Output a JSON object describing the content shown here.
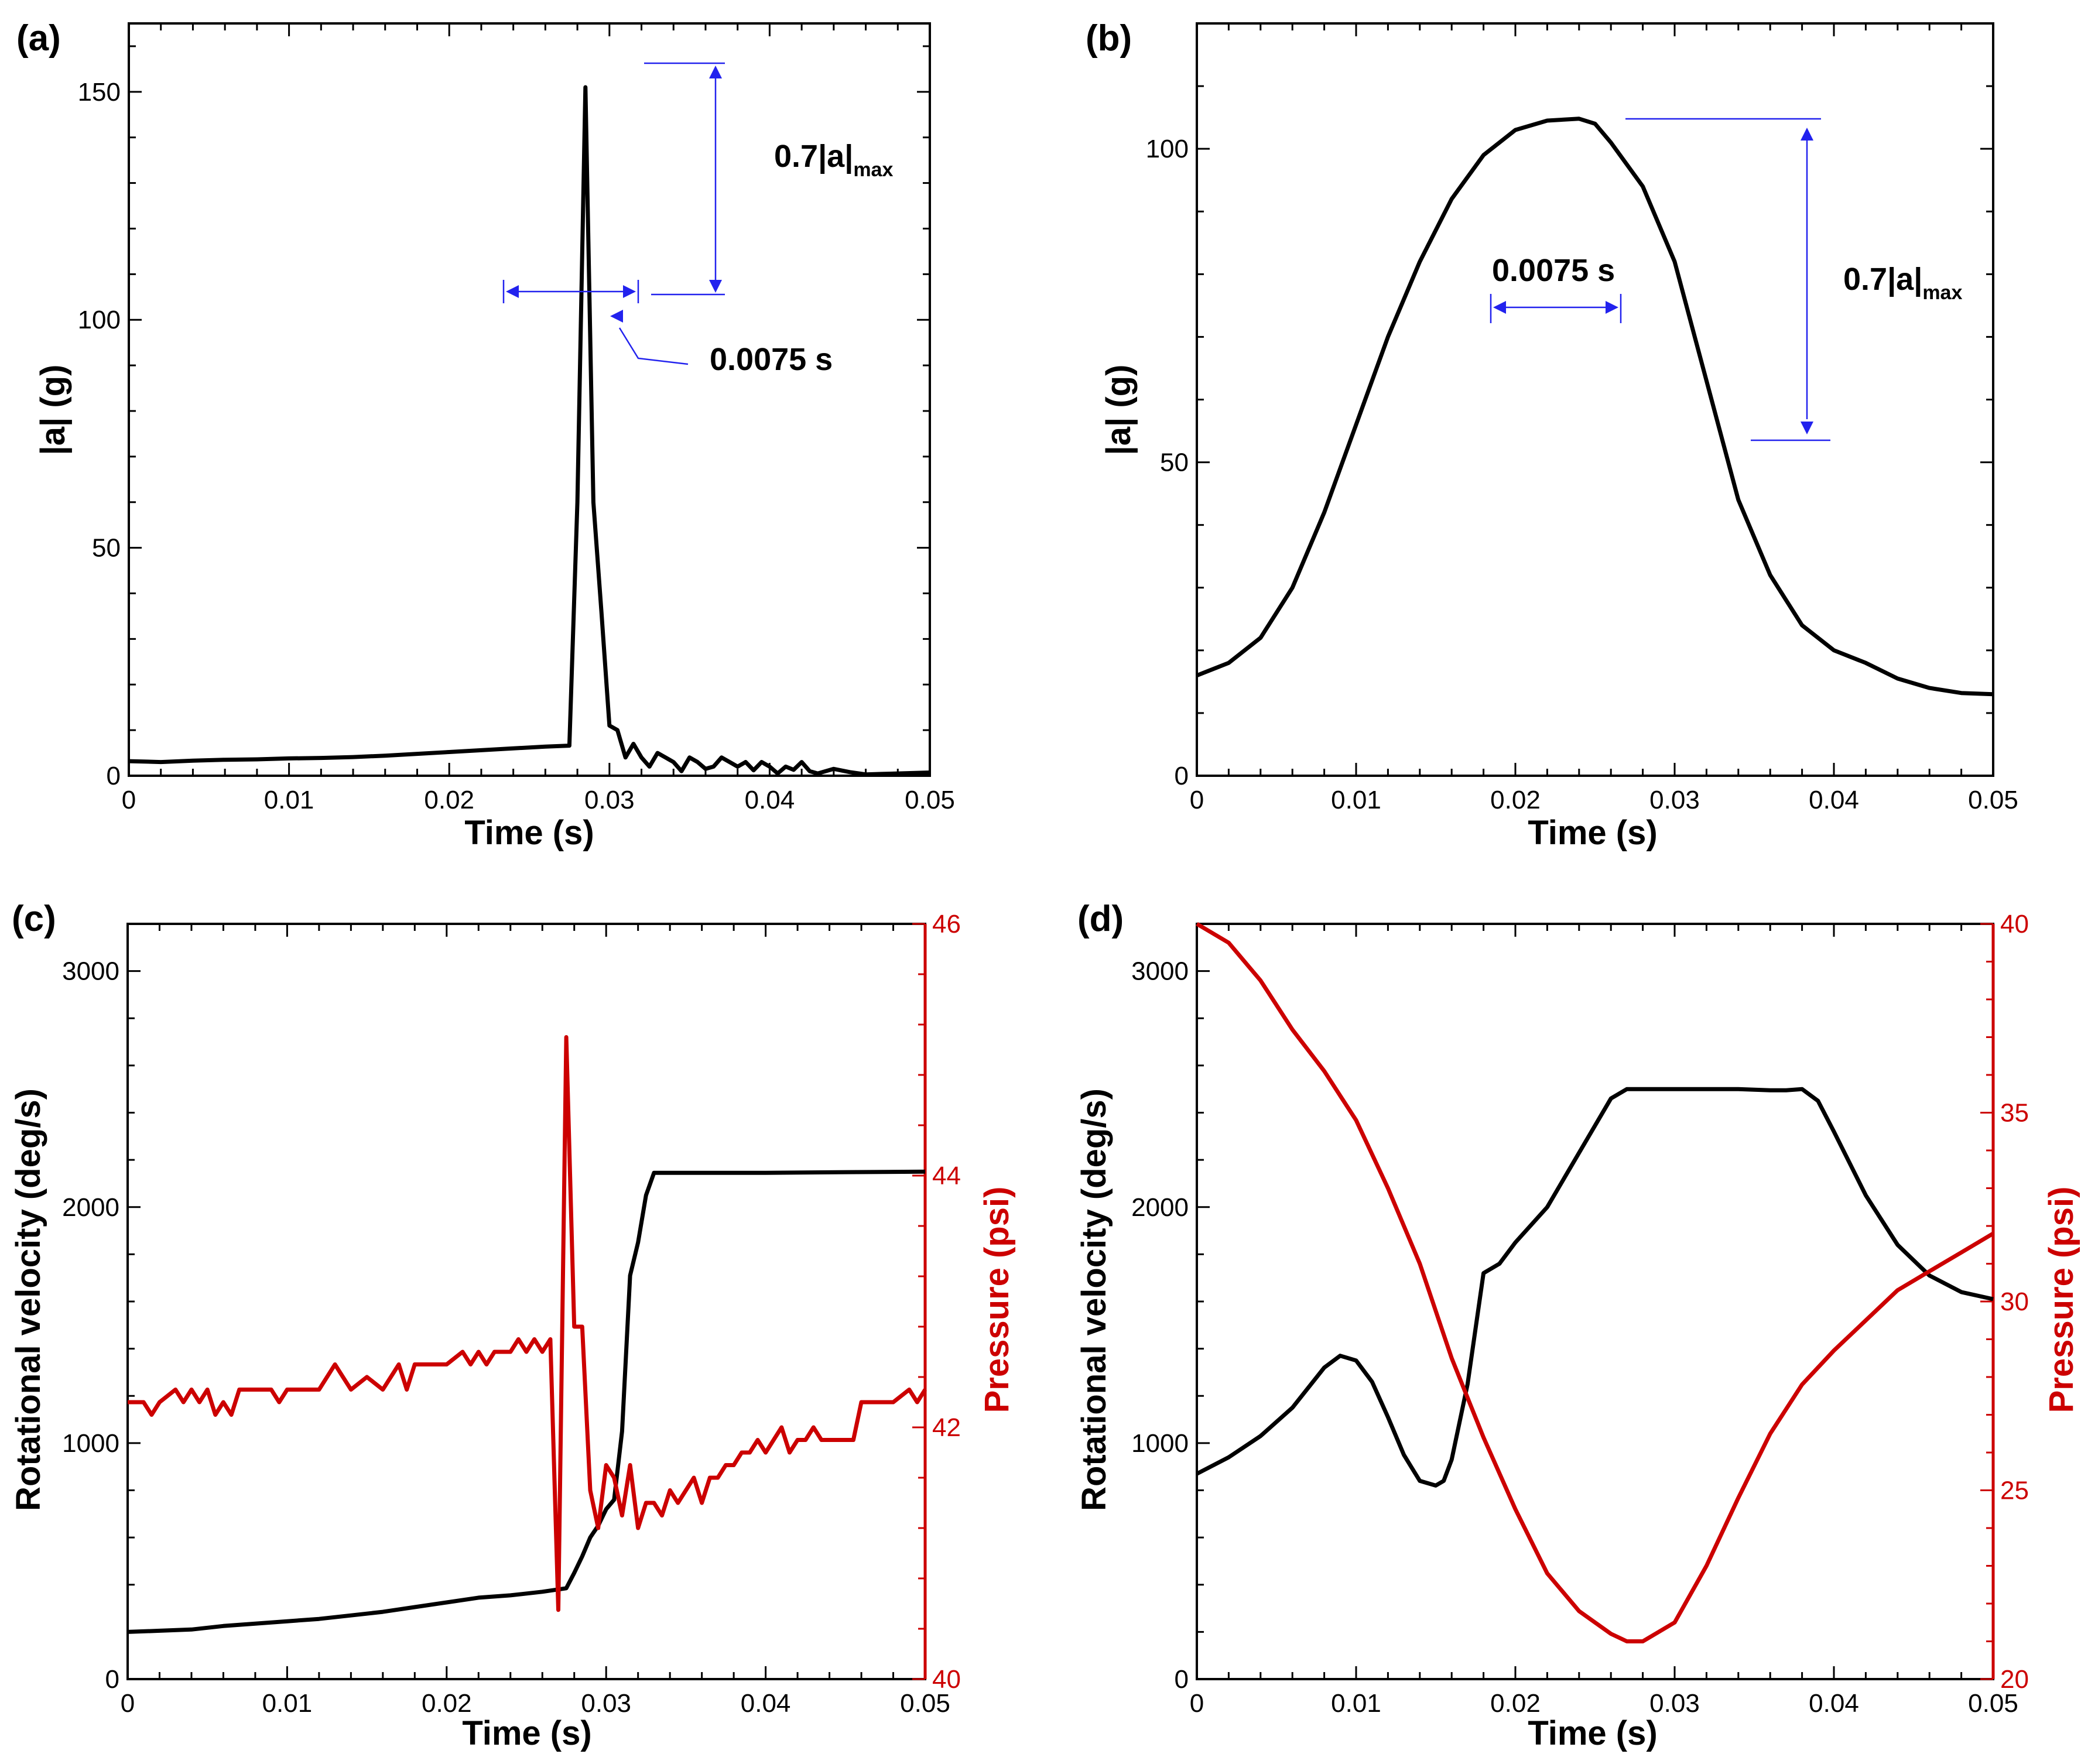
{
  "figure": {
    "panels": [
      {
        "id": "a",
        "label": "(a)"
      },
      {
        "id": "b",
        "label": "(b)"
      },
      {
        "id": "c",
        "label": "(c)"
      },
      {
        "id": "d",
        "label": "(d)"
      }
    ],
    "colors": {
      "black_series": "#000000",
      "red_series": "#cc0000",
      "annotation": "#2222ee"
    }
  },
  "chart_data": [
    {
      "id": "a",
      "type": "line",
      "title": "(a)",
      "xlabel": "Time (s)",
      "ylabel": "|a| (g)",
      "xlim": [
        0,
        0.05
      ],
      "ylim": [
        0,
        165
      ],
      "xticks": [
        0,
        0.01,
        0.02,
        0.03,
        0.04,
        0.05
      ],
      "xtick_labels": [
        "0",
        "0.01",
        "0.02",
        "0.03",
        "0.04",
        "0.05"
      ],
      "yticks": [
        0,
        50,
        100,
        150
      ],
      "ytick_labels": [
        "0",
        "50",
        "100",
        "150"
      ],
      "series": [
        {
          "name": "|a|",
          "color": "#000000",
          "x": [
            0,
            0.002,
            0.004,
            0.006,
            0.008,
            0.01,
            0.012,
            0.014,
            0.016,
            0.018,
            0.02,
            0.022,
            0.024,
            0.026,
            0.0275,
            0.028,
            0.0285,
            0.029,
            0.0295,
            0.03,
            0.0305,
            0.031,
            0.0315,
            0.032,
            0.0325,
            0.033,
            0.0335,
            0.034,
            0.0345,
            0.035,
            0.0355,
            0.036,
            0.0365,
            0.037,
            0.0375,
            0.038,
            0.0385,
            0.039,
            0.0395,
            0.04,
            0.0405,
            0.041,
            0.0415,
            0.042,
            0.0425,
            0.043,
            0.044,
            0.045,
            0.046,
            0.047,
            0.048,
            0.05
          ],
          "y": [
            3.2,
            3.0,
            3.3,
            3.5,
            3.6,
            3.8,
            3.9,
            4.1,
            4.4,
            4.8,
            5.2,
            5.6,
            6.0,
            6.4,
            6.6,
            60,
            151,
            60,
            36,
            11,
            10,
            4,
            7,
            4,
            2,
            5,
            4,
            3,
            1,
            4,
            3,
            1.5,
            2,
            4,
            3,
            2,
            3,
            1.2,
            3,
            2,
            0.5,
            2,
            1.3,
            3,
            1,
            0.5,
            1.5,
            0.8,
            0.3,
            0.4,
            0.5,
            0.7
          ]
        }
      ],
      "annotations": [
        {
          "text": "0.7|a|",
          "sub": "max"
        },
        {
          "text": "0.0075 s"
        }
      ]
    },
    {
      "id": "b",
      "type": "line",
      "title": "(b)",
      "xlabel": "Time (s)",
      "ylabel": "|a| (g)",
      "xlim": [
        0,
        0.05
      ],
      "ylim": [
        0,
        120
      ],
      "xticks": [
        0,
        0.01,
        0.02,
        0.03,
        0.04,
        0.05
      ],
      "xtick_labels": [
        "0",
        "0.01",
        "0.02",
        "0.03",
        "0.04",
        "0.05"
      ],
      "yticks": [
        0,
        50,
        100
      ],
      "ytick_labels": [
        "0",
        "50",
        "100"
      ],
      "series": [
        {
          "name": "|a|",
          "color": "#000000",
          "x": [
            0,
            0.002,
            0.004,
            0.006,
            0.008,
            0.01,
            0.012,
            0.014,
            0.016,
            0.018,
            0.02,
            0.022,
            0.024,
            0.025,
            0.026,
            0.028,
            0.03,
            0.032,
            0.034,
            0.036,
            0.038,
            0.04,
            0.042,
            0.044,
            0.046,
            0.048,
            0.05
          ],
          "y": [
            16,
            18,
            22,
            30,
            42,
            56,
            70,
            82,
            92,
            99,
            103,
            104.5,
            104.8,
            104,
            101,
            94,
            82,
            63,
            44,
            32,
            24,
            20,
            18,
            15.5,
            14,
            13.2,
            13
          ]
        }
      ],
      "annotations": [
        {
          "text": "0.0075 s"
        },
        {
          "text": "0.7|a|",
          "sub": "max"
        }
      ]
    },
    {
      "id": "c",
      "type": "line",
      "title": "(c)",
      "xlabel": "Time (s)",
      "ylabel": "Rotational velocity (deg/s)",
      "y2label": "Pressure (psi)",
      "xlim": [
        0,
        0.05
      ],
      "ylim": [
        0,
        3200
      ],
      "y2lim": [
        40,
        46
      ],
      "xticks": [
        0,
        0.01,
        0.02,
        0.03,
        0.04,
        0.05
      ],
      "xtick_labels": [
        "0",
        "0.01",
        "0.02",
        "0.03",
        "0.04",
        "0.05"
      ],
      "yticks": [
        0,
        1000,
        2000,
        3000
      ],
      "ytick_labels": [
        "0",
        "1000",
        "2000",
        "3000"
      ],
      "y2ticks": [
        40,
        42,
        44,
        46
      ],
      "y2tick_labels": [
        "40",
        "42",
        "44",
        "46"
      ],
      "series": [
        {
          "name": "Rotational velocity",
          "axis": "left",
          "color": "#000000",
          "x": [
            0,
            0.002,
            0.004,
            0.006,
            0.008,
            0.01,
            0.012,
            0.014,
            0.016,
            0.018,
            0.02,
            0.022,
            0.024,
            0.026,
            0.0275,
            0.028,
            0.0285,
            0.029,
            0.0295,
            0.03,
            0.0305,
            0.031,
            0.0315,
            0.032,
            0.0325,
            0.033,
            0.034,
            0.036,
            0.04,
            0.045,
            0.05
          ],
          "y": [
            200,
            205,
            210,
            225,
            235,
            245,
            255,
            270,
            285,
            305,
            325,
            345,
            355,
            370,
            385,
            450,
            520,
            600,
            650,
            720,
            760,
            1050,
            1710,
            1850,
            2050,
            2145,
            2145,
            2145,
            2145,
            2148,
            2150
          ]
        },
        {
          "name": "Pressure",
          "axis": "right",
          "color": "#cc0000",
          "x": [
            0,
            0.001,
            0.0015,
            0.002,
            0.003,
            0.0035,
            0.004,
            0.0045,
            0.005,
            0.0055,
            0.006,
            0.0065,
            0.007,
            0.008,
            0.009,
            0.0095,
            0.01,
            0.011,
            0.012,
            0.013,
            0.0135,
            0.014,
            0.015,
            0.016,
            0.017,
            0.0175,
            0.018,
            0.019,
            0.02,
            0.021,
            0.0215,
            0.022,
            0.0225,
            0.023,
            0.024,
            0.0245,
            0.025,
            0.0255,
            0.026,
            0.0265,
            0.027,
            0.0275,
            0.028,
            0.0285,
            0.029,
            0.0295,
            0.03,
            0.0305,
            0.031,
            0.0315,
            0.032,
            0.0325,
            0.033,
            0.0335,
            0.034,
            0.0345,
            0.035,
            0.0355,
            0.036,
            0.0365,
            0.037,
            0.0375,
            0.038,
            0.0385,
            0.039,
            0.0395,
            0.04,
            0.041,
            0.0415,
            0.042,
            0.0425,
            0.043,
            0.0435,
            0.044,
            0.0445,
            0.045,
            0.0455,
            0.046,
            0.047,
            0.0475,
            0.048,
            0.049,
            0.0495,
            0.05
          ],
          "y": [
            42.2,
            42.2,
            42.1,
            42.2,
            42.3,
            42.2,
            42.3,
            42.2,
            42.3,
            42.1,
            42.2,
            42.1,
            42.3,
            42.3,
            42.3,
            42.2,
            42.3,
            42.3,
            42.3,
            42.5,
            42.4,
            42.3,
            42.4,
            42.3,
            42.5,
            42.3,
            42.5,
            42.5,
            42.5,
            42.6,
            42.5,
            42.6,
            42.5,
            42.6,
            42.6,
            42.7,
            42.6,
            42.7,
            42.6,
            42.7,
            40.55,
            45.1,
            42.8,
            42.8,
            41.5,
            41.2,
            41.7,
            41.6,
            41.3,
            41.7,
            41.2,
            41.4,
            41.4,
            41.3,
            41.5,
            41.4,
            41.5,
            41.6,
            41.4,
            41.6,
            41.6,
            41.7,
            41.7,
            41.8,
            41.8,
            41.9,
            41.8,
            42.0,
            41.8,
            41.9,
            41.9,
            42.0,
            41.9,
            41.9,
            41.9,
            41.9,
            41.9,
            42.2,
            42.2,
            42.2,
            42.2,
            42.3,
            42.2,
            42.3
          ]
        }
      ]
    },
    {
      "id": "d",
      "type": "line",
      "title": "(d)",
      "xlabel": "Time (s)",
      "ylabel": "Rotational velocity (deg/s)",
      "y2label": "Pressure (psi)",
      "xlim": [
        0,
        0.05
      ],
      "ylim": [
        0,
        3200
      ],
      "y2lim": [
        20,
        40
      ],
      "xticks": [
        0,
        0.01,
        0.02,
        0.03,
        0.04,
        0.05
      ],
      "xtick_labels": [
        "0",
        "0.01",
        "0.02",
        "0.03",
        "0.04",
        "0.05"
      ],
      "yticks": [
        0,
        1000,
        2000,
        3000
      ],
      "ytick_labels": [
        "0",
        "1000",
        "2000",
        "3000"
      ],
      "y2ticks": [
        20,
        25,
        30,
        35,
        40
      ],
      "y2tick_labels": [
        "20",
        "25",
        "30",
        "35",
        "40"
      ],
      "series": [
        {
          "name": "Rotational velocity",
          "axis": "left",
          "color": "#000000",
          "x": [
            0,
            0.002,
            0.004,
            0.006,
            0.008,
            0.009,
            0.01,
            0.011,
            0.012,
            0.013,
            0.014,
            0.015,
            0.0155,
            0.016,
            0.017,
            0.018,
            0.019,
            0.02,
            0.022,
            0.024,
            0.026,
            0.027,
            0.03,
            0.034,
            0.036,
            0.037,
            0.038,
            0.039,
            0.04,
            0.042,
            0.044,
            0.046,
            0.048,
            0.05
          ],
          "y": [
            870,
            940,
            1030,
            1150,
            1320,
            1370,
            1350,
            1260,
            1110,
            950,
            840,
            820,
            840,
            930,
            1250,
            1720,
            1760,
            1850,
            2000,
            2230,
            2460,
            2500,
            2500,
            2500,
            2495,
            2495,
            2500,
            2450,
            2320,
            2050,
            1840,
            1710,
            1640,
            1610
          ]
        },
        {
          "name": "Pressure",
          "axis": "right",
          "color": "#cc0000",
          "x": [
            0,
            0.002,
            0.004,
            0.006,
            0.008,
            0.01,
            0.012,
            0.014,
            0.016,
            0.018,
            0.02,
            0.022,
            0.024,
            0.026,
            0.027,
            0.028,
            0.03,
            0.032,
            0.034,
            0.036,
            0.038,
            0.04,
            0.042,
            0.044,
            0.046,
            0.048,
            0.05
          ],
          "y": [
            40,
            39.5,
            38.5,
            37.2,
            36.1,
            34.8,
            33.0,
            31.0,
            28.5,
            26.4,
            24.5,
            22.8,
            21.8,
            21.2,
            21.0,
            21.0,
            21.5,
            23.0,
            24.8,
            26.5,
            27.8,
            28.7,
            29.5,
            30.3,
            30.8,
            31.3,
            31.8
          ]
        }
      ]
    }
  ]
}
